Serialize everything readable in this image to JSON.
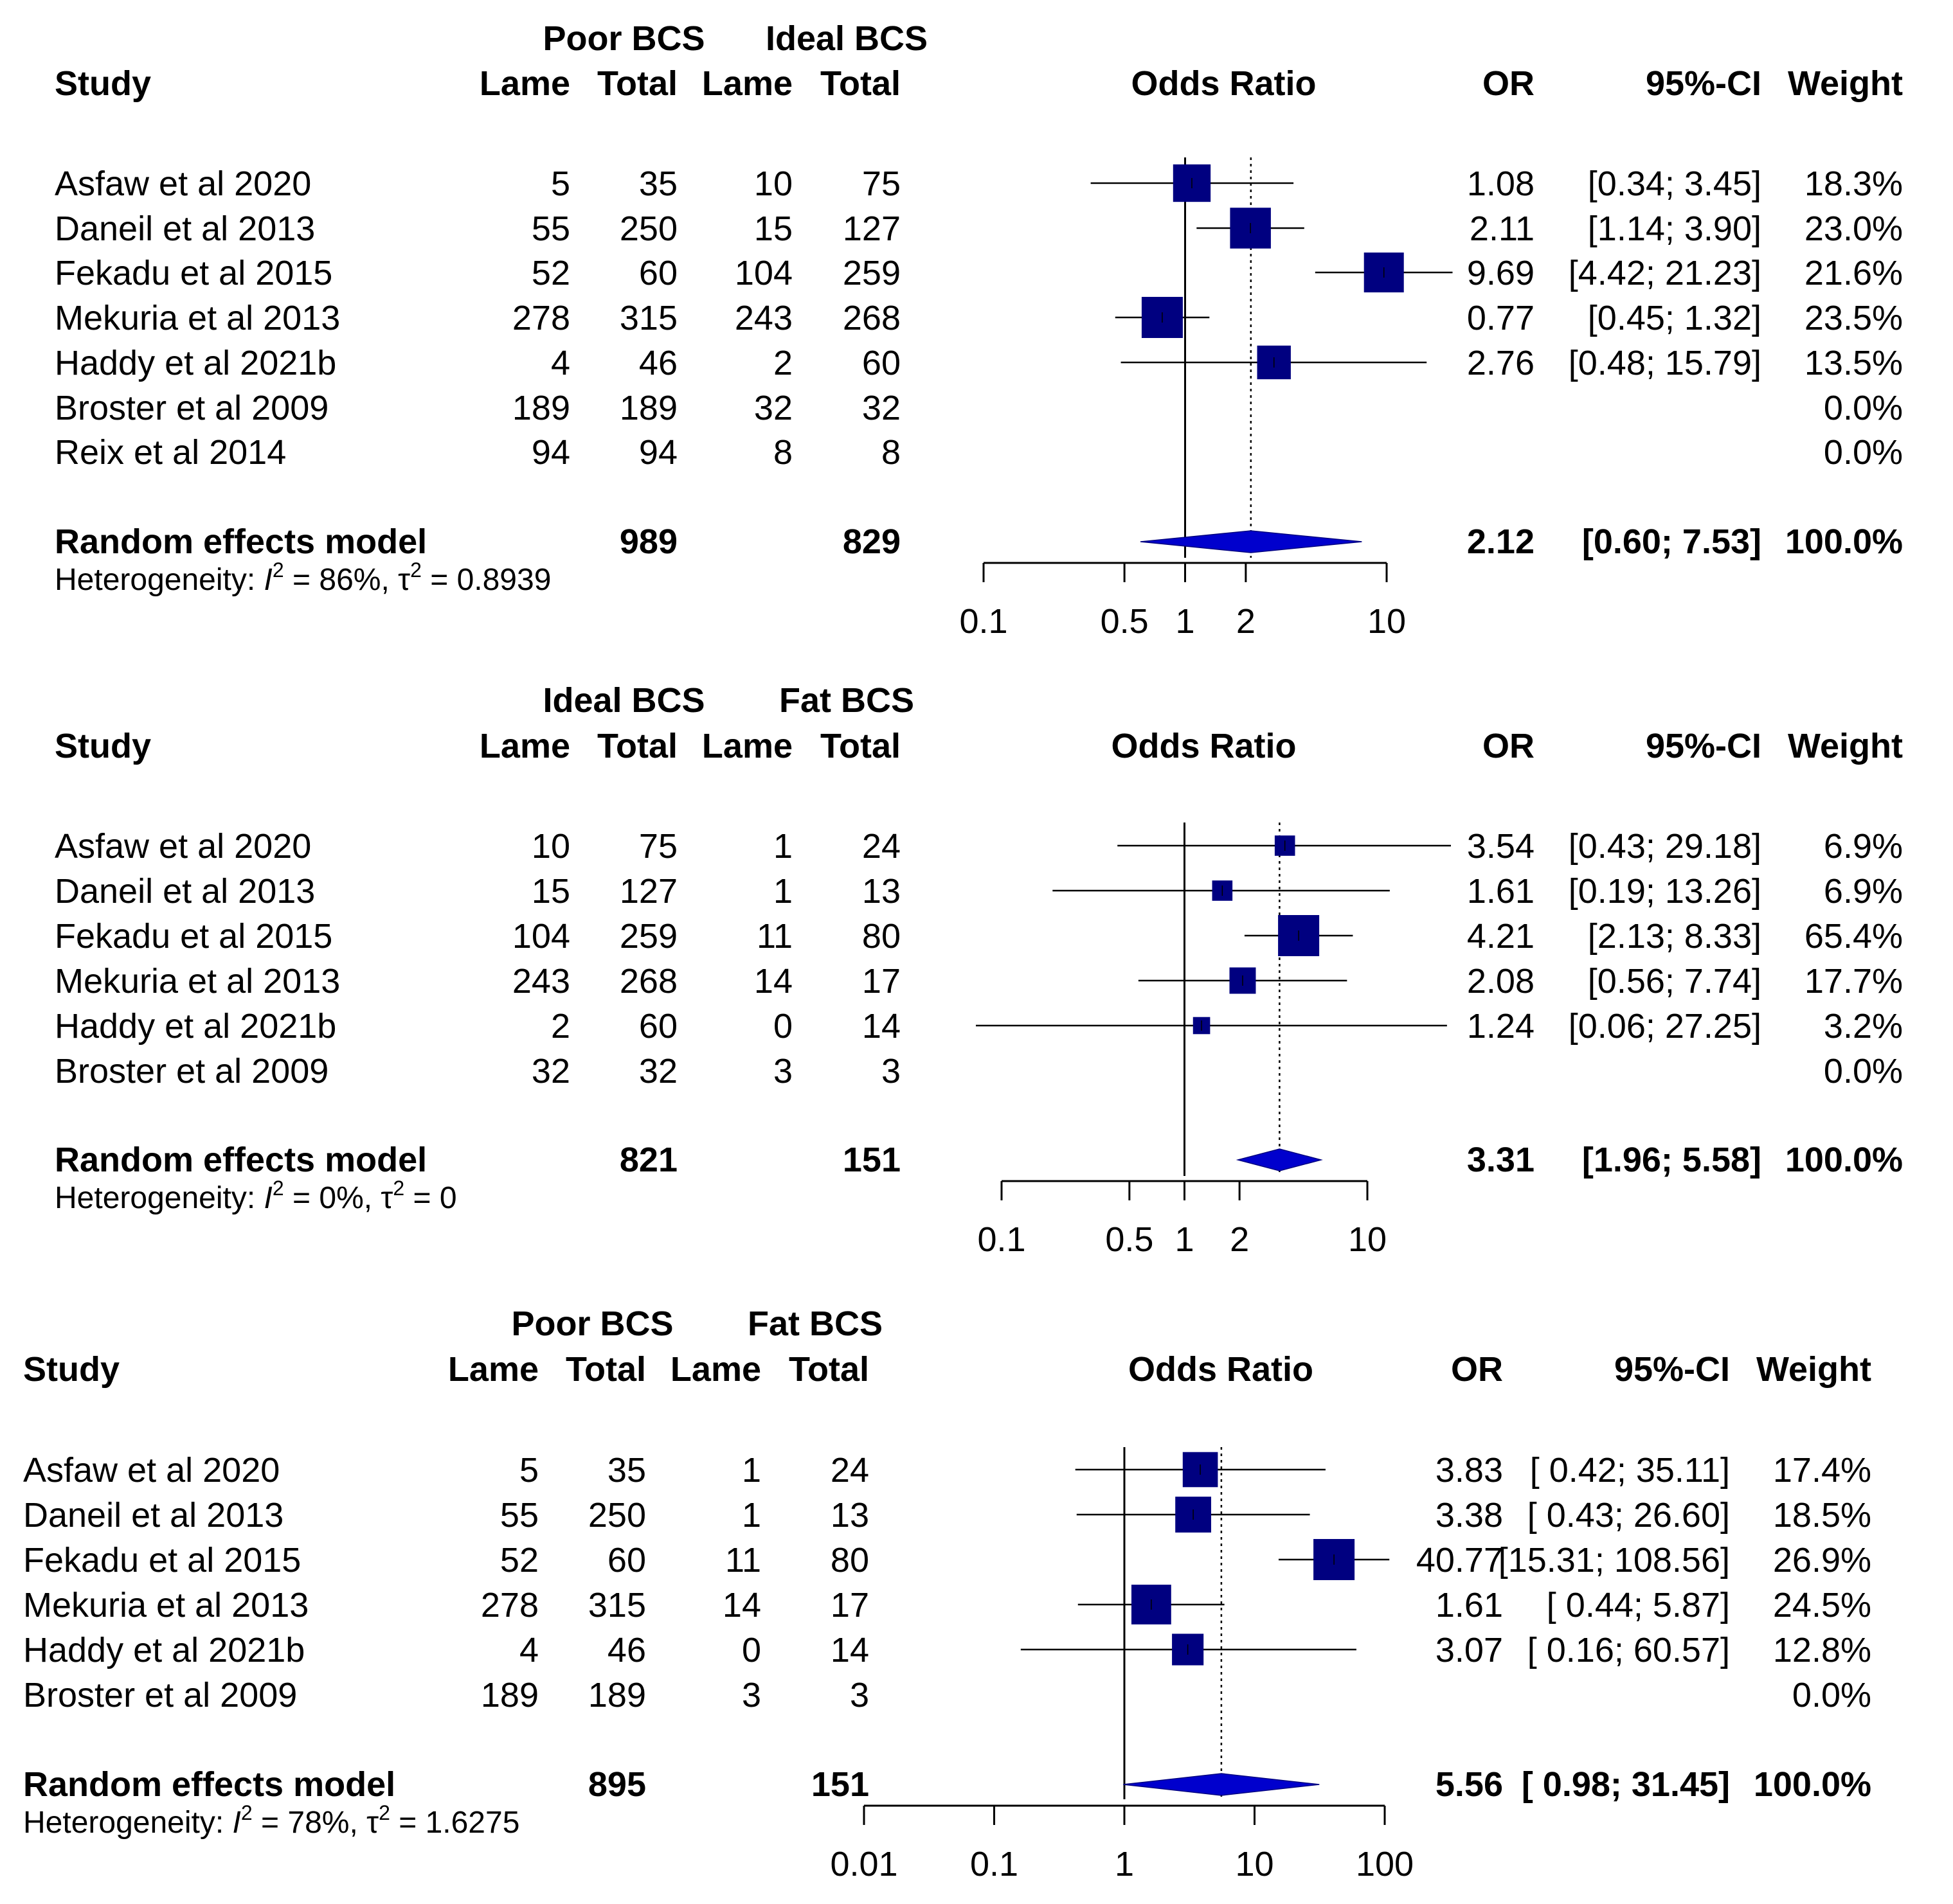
{
  "figure": {
    "heterogeneity_prefix": "Heterogeneity: "
  },
  "chart_data": [
    {
      "type": "forest",
      "group1": "Poor BCS",
      "group2": "Ideal BCS",
      "headers": {
        "study": "Study",
        "lame": "Lame",
        "total": "Total",
        "plot": "Odds Ratio",
        "or": "OR",
        "ci": "95%-CI",
        "weight": "Weight"
      },
      "studies": [
        {
          "name": "Asfaw et al 2020",
          "e1": "5",
          "n1": "35",
          "e2": "10",
          "n2": "75",
          "or": 1.08,
          "lower": 0.34,
          "upper": 3.45,
          "or_text": "1.08",
          "ci_text": "[0.34;  3.45]",
          "weight": "18.3%",
          "w": 18.3
        },
        {
          "name": "Daneil et al 2013",
          "e1": "55",
          "n1": "250",
          "e2": "15",
          "n2": "127",
          "or": 2.11,
          "lower": 1.14,
          "upper": 3.9,
          "or_text": "2.11",
          "ci_text": "[1.14;  3.90]",
          "weight": "23.0%",
          "w": 23.0
        },
        {
          "name": "Fekadu et al 2015",
          "e1": "52",
          "n1": "60",
          "e2": "104",
          "n2": "259",
          "or": 9.69,
          "lower": 4.42,
          "upper": 21.23,
          "or_text": "9.69",
          "ci_text": "[4.42; 21.23]",
          "weight": "21.6%",
          "w": 21.6
        },
        {
          "name": "Mekuria et al 2013",
          "e1": "278",
          "n1": "315",
          "e2": "243",
          "n2": "268",
          "or": 0.77,
          "lower": 0.45,
          "upper": 1.32,
          "or_text": "0.77",
          "ci_text": "[0.45;  1.32]",
          "weight": "23.5%",
          "w": 23.5
        },
        {
          "name": "Haddy et al 2021b",
          "e1": "4",
          "n1": "46",
          "e2": "2",
          "n2": "60",
          "or": 2.76,
          "lower": 0.48,
          "upper": 15.79,
          "or_text": "2.76",
          "ci_text": "[0.48; 15.79]",
          "weight": "13.5%",
          "w": 13.5
        },
        {
          "name": "Broster et al 2009",
          "e1": "189",
          "n1": "189",
          "e2": "32",
          "n2": "32",
          "or": null,
          "lower": null,
          "upper": null,
          "or_text": "",
          "ci_text": "",
          "weight": "0.0%",
          "w": 0
        },
        {
          "name": "Reix et al 2014",
          "e1": "94",
          "n1": "94",
          "e2": "8",
          "n2": "8",
          "or": null,
          "lower": null,
          "upper": null,
          "or_text": "",
          "ci_text": "",
          "weight": "0.0%",
          "w": 0
        }
      ],
      "summary": {
        "label": "Random effects model",
        "n1": "989",
        "n2": "829",
        "or": 2.12,
        "lower": 0.6,
        "upper": 7.53,
        "or_text": "2.12",
        "ci_text": "[0.60;  7.53]",
        "weight": "100.0%"
      },
      "heterogeneity": {
        "I2": "86%",
        "tau2": "0.8939"
      },
      "axis": {
        "scale": "log",
        "ticks": [
          0.1,
          0.5,
          1,
          2,
          10
        ],
        "tick_labels": [
          "0.1",
          "0.5",
          "1",
          "2",
          "10"
        ]
      }
    },
    {
      "type": "forest",
      "group1": "Ideal BCS",
      "group2": "Fat BCS",
      "headers": {
        "study": "Study",
        "lame": "Lame",
        "total": "Total",
        "plot": "Odds Ratio",
        "or": "OR",
        "ci": "95%-CI",
        "weight": "Weight"
      },
      "studies": [
        {
          "name": "Asfaw et al 2020",
          "e1": "10",
          "n1": "75",
          "e2": "1",
          "n2": "24",
          "or": 3.54,
          "lower": 0.43,
          "upper": 29.18,
          "or_text": "3.54",
          "ci_text": "[0.43; 29.18]",
          "weight": "6.9%",
          "w": 6.9
        },
        {
          "name": "Daneil et al 2013",
          "e1": "15",
          "n1": "127",
          "e2": "1",
          "n2": "13",
          "or": 1.61,
          "lower": 0.19,
          "upper": 13.26,
          "or_text": "1.61",
          "ci_text": "[0.19; 13.26]",
          "weight": "6.9%",
          "w": 6.9
        },
        {
          "name": "Fekadu et al 2015",
          "e1": "104",
          "n1": "259",
          "e2": "11",
          "n2": "80",
          "or": 4.21,
          "lower": 2.13,
          "upper": 8.33,
          "or_text": "4.21",
          "ci_text": "[2.13;  8.33]",
          "weight": "65.4%",
          "w": 65.4
        },
        {
          "name": "Mekuria et al 2013",
          "e1": "243",
          "n1": "268",
          "e2": "14",
          "n2": "17",
          "or": 2.08,
          "lower": 0.56,
          "upper": 7.74,
          "or_text": "2.08",
          "ci_text": "[0.56;  7.74]",
          "weight": "17.7%",
          "w": 17.7
        },
        {
          "name": "Haddy et al 2021b",
          "e1": "2",
          "n1": "60",
          "e2": "0",
          "n2": "14",
          "or": 1.24,
          "lower": 0.06,
          "upper": 27.25,
          "or_text": "1.24",
          "ci_text": "[0.06; 27.25]",
          "weight": "3.2%",
          "w": 3.2
        },
        {
          "name": "Broster et al 2009",
          "e1": "32",
          "n1": "32",
          "e2": "3",
          "n2": "3",
          "or": null,
          "lower": null,
          "upper": null,
          "or_text": "",
          "ci_text": "",
          "weight": "0.0%",
          "w": 0
        }
      ],
      "summary": {
        "label": "Random effects model",
        "n1": "821",
        "n2": "151",
        "or": 3.31,
        "lower": 1.96,
        "upper": 5.58,
        "or_text": "3.31",
        "ci_text": "[1.96;  5.58]",
        "weight": "100.0%"
      },
      "heterogeneity": {
        "I2": "0%",
        "tau2": "0"
      },
      "axis": {
        "scale": "log",
        "ticks": [
          0.1,
          0.5,
          1,
          2,
          10
        ],
        "tick_labels": [
          "0.1",
          "0.5",
          "1",
          "2",
          "10"
        ]
      }
    },
    {
      "type": "forest",
      "group1": "Poor BCS",
      "group2": "Fat BCS",
      "headers": {
        "study": "Study",
        "lame": "Lame",
        "total": "Total",
        "plot": "Odds Ratio",
        "or": "OR",
        "ci": "95%-CI",
        "weight": "Weight"
      },
      "studies": [
        {
          "name": "Asfaw et al 2020",
          "e1": "5",
          "n1": "35",
          "e2": "1",
          "n2": "24",
          "or": 3.83,
          "lower": 0.42,
          "upper": 35.11,
          "or_text": "3.83",
          "ci_text": "[ 0.42;  35.11]",
          "weight": "17.4%",
          "w": 17.4
        },
        {
          "name": "Daneil et al 2013",
          "e1": "55",
          "n1": "250",
          "e2": "1",
          "n2": "13",
          "or": 3.38,
          "lower": 0.43,
          "upper": 26.6,
          "or_text": "3.38",
          "ci_text": "[ 0.43;  26.60]",
          "weight": "18.5%",
          "w": 18.5
        },
        {
          "name": "Fekadu et al 2015",
          "e1": "52",
          "n1": "60",
          "e2": "11",
          "n2": "80",
          "or": 40.77,
          "lower": 15.31,
          "upper": 108.56,
          "or_text": "40.77",
          "ci_text": "[15.31; 108.56]",
          "weight": "26.9%",
          "w": 26.9
        },
        {
          "name": "Mekuria et al 2013",
          "e1": "278",
          "n1": "315",
          "e2": "14",
          "n2": "17",
          "or": 1.61,
          "lower": 0.44,
          "upper": 5.87,
          "or_text": "1.61",
          "ci_text": "[ 0.44;   5.87]",
          "weight": "24.5%",
          "w": 24.5
        },
        {
          "name": "Haddy et al 2021b",
          "e1": "4",
          "n1": "46",
          "e2": "0",
          "n2": "14",
          "or": 3.07,
          "lower": 0.16,
          "upper": 60.57,
          "or_text": "3.07",
          "ci_text": "[ 0.16;  60.57]",
          "weight": "12.8%",
          "w": 12.8
        },
        {
          "name": "Broster et al 2009",
          "e1": "189",
          "n1": "189",
          "e2": "3",
          "n2": "3",
          "or": null,
          "lower": null,
          "upper": null,
          "or_text": "",
          "ci_text": "",
          "weight": "0.0%",
          "w": 0
        }
      ],
      "summary": {
        "label": "Random effects model",
        "n1": "895",
        "n2": "151",
        "or": 5.56,
        "lower": 0.98,
        "upper": 31.45,
        "or_text": "5.56",
        "ci_text": "[ 0.98;  31.45]",
        "weight": "100.0%"
      },
      "heterogeneity": {
        "I2": "78%",
        "tau2": "1.6275"
      },
      "axis": {
        "scale": "log",
        "ticks": [
          0.01,
          0.1,
          1,
          10,
          100
        ],
        "tick_labels": [
          "0.01",
          "0.1",
          "1",
          "10",
          "100"
        ]
      }
    }
  ]
}
